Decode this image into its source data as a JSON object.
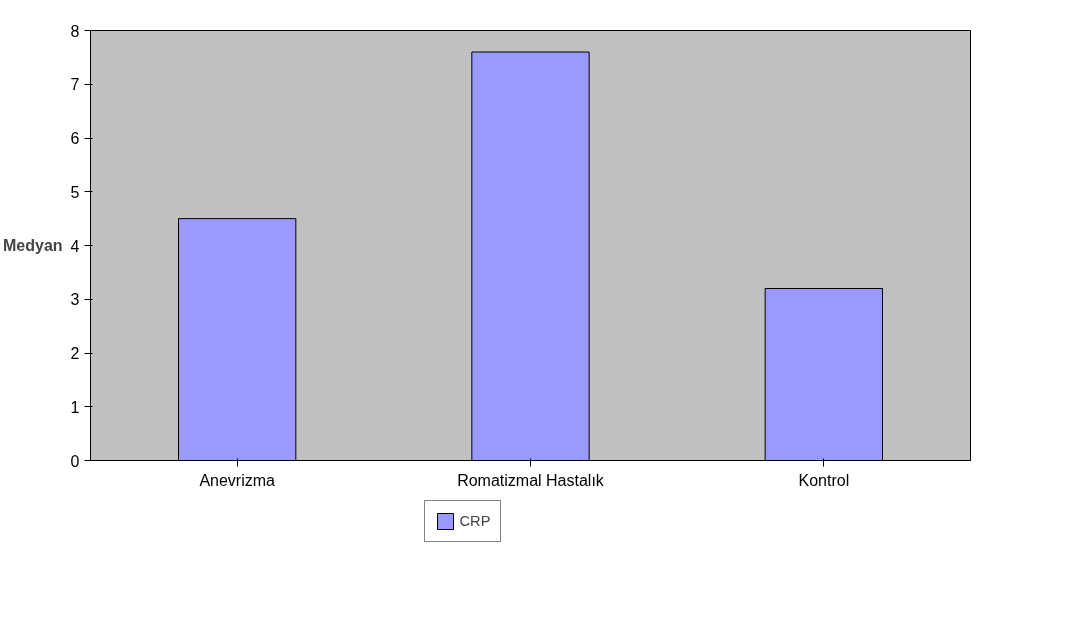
{
  "chart_data": {
    "type": "bar",
    "ylabel": "Medyan",
    "categories": [
      "Anevrizma",
      "Romatizmal Hastalık",
      "Kontrol"
    ],
    "series": [
      {
        "name": "CRP",
        "color": "#9999ff",
        "values": [
          4.5,
          7.6,
          3.2
        ]
      }
    ],
    "ylim": [
      0,
      8
    ],
    "yticks": [
      0,
      1,
      2,
      3,
      4,
      5,
      6,
      7,
      8
    ],
    "grid": false,
    "legend": "bottom"
  }
}
